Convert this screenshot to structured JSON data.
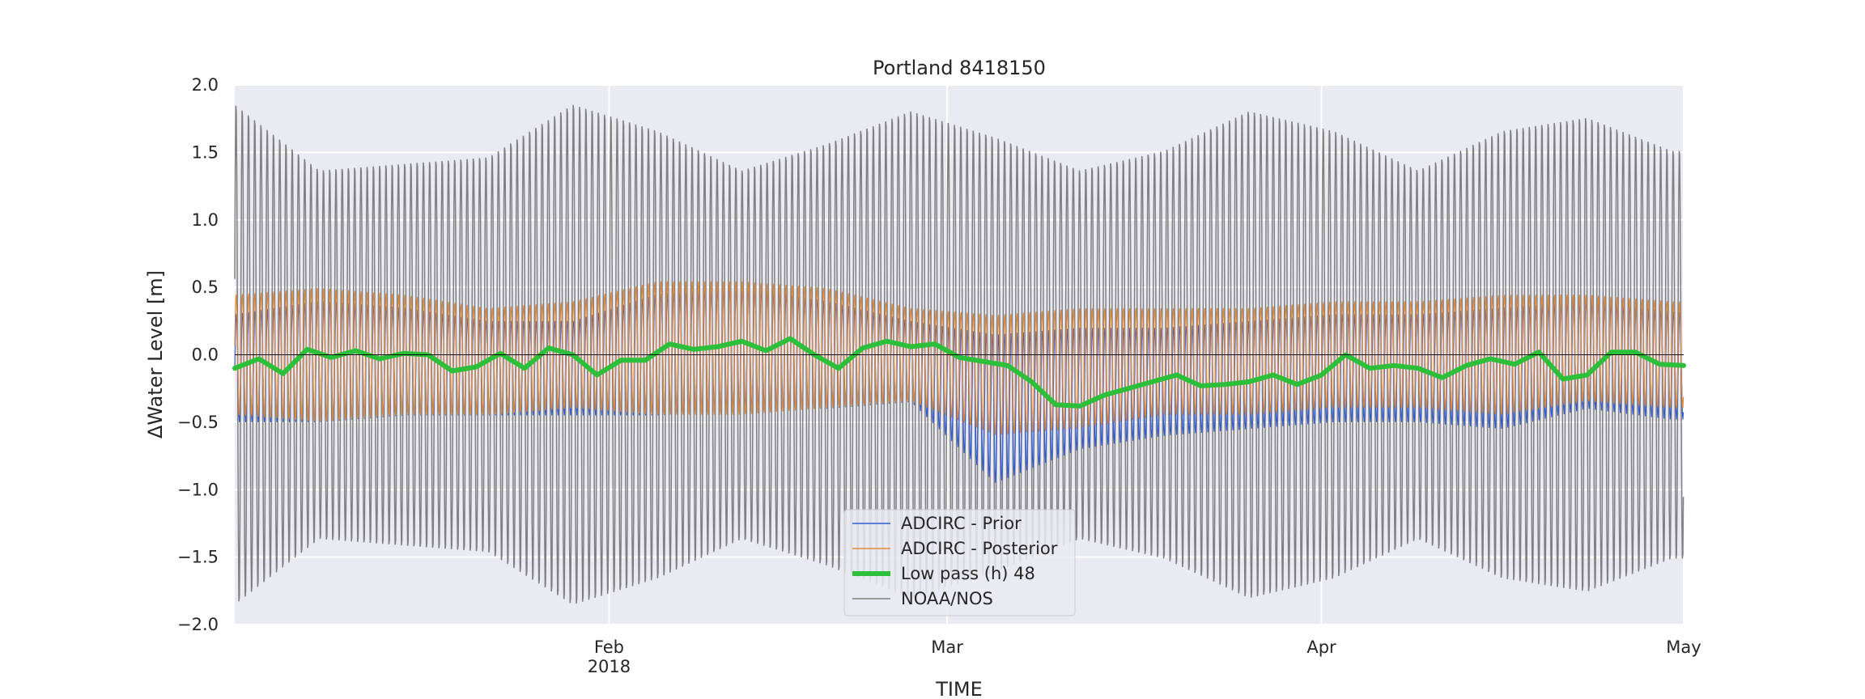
{
  "chart_data": {
    "type": "line",
    "title": "Portland  8418150",
    "xlabel": "TIME",
    "ylabel": "ΔWater Level [m]",
    "ylim": [
      -2.0,
      2.0
    ],
    "yticks": [
      "2.0",
      "1.5",
      "1.0",
      "0.5",
      "0.0",
      "−0.5",
      "−1.0",
      "−1.5",
      "−2.0"
    ],
    "xlim": [
      "2018-01-01",
      "2018-05-01"
    ],
    "xticks": [
      {
        "date": "2018-02-01",
        "label": "Feb",
        "sublabel": "2018"
      },
      {
        "date": "2018-03-01",
        "label": "Mar",
        "sublabel": ""
      },
      {
        "date": "2018-04-01",
        "label": "Apr",
        "sublabel": ""
      },
      {
        "date": "2018-05-01",
        "label": "May",
        "sublabel": ""
      }
    ],
    "grid": true,
    "legend_position": "lower center",
    "series": [
      {
        "name": "ADCIRC - Prior",
        "color": "#2f5bd6",
        "dates": [
          "2018-01-01",
          "2018-01-08",
          "2018-01-15",
          "2018-01-22",
          "2018-01-29",
          "2018-02-05",
          "2018-02-12",
          "2018-02-19",
          "2018-02-26",
          "2018-03-05",
          "2018-03-12",
          "2018-03-19",
          "2018-03-26",
          "2018-04-02",
          "2018-04-09",
          "2018-04-16",
          "2018-04-23",
          "2018-04-30"
        ],
        "mean": [
          -0.1,
          -0.05,
          -0.05,
          -0.1,
          -0.1,
          0.0,
          0.05,
          0.0,
          -0.05,
          -0.4,
          -0.25,
          -0.2,
          -0.15,
          -0.1,
          -0.1,
          -0.1,
          0.0,
          -0.08
        ],
        "amplitude": [
          0.4,
          0.45,
          0.4,
          0.35,
          0.35,
          0.45,
          0.45,
          0.4,
          0.3,
          0.55,
          0.45,
          0.4,
          0.4,
          0.4,
          0.4,
          0.45,
          0.4,
          0.4
        ]
      },
      {
        "name": "ADCIRC - Posterior",
        "color": "#e0893a",
        "dates": [
          "2018-01-01",
          "2018-01-08",
          "2018-01-15",
          "2018-01-22",
          "2018-01-29",
          "2018-02-05",
          "2018-02-12",
          "2018-02-19",
          "2018-02-26",
          "2018-03-05",
          "2018-03-12",
          "2018-03-19",
          "2018-03-26",
          "2018-04-02",
          "2018-04-09",
          "2018-04-16",
          "2018-04-23",
          "2018-04-30"
        ],
        "mean": [
          0.0,
          0.0,
          0.0,
          -0.05,
          0.0,
          0.05,
          0.05,
          0.05,
          0.0,
          -0.15,
          -0.1,
          -0.05,
          -0.05,
          0.0,
          0.0,
          0.0,
          0.05,
          0.0
        ],
        "amplitude": [
          0.45,
          0.5,
          0.45,
          0.4,
          0.4,
          0.5,
          0.5,
          0.45,
          0.35,
          0.45,
          0.45,
          0.4,
          0.4,
          0.4,
          0.4,
          0.45,
          0.4,
          0.4
        ]
      },
      {
        "name": "Low pass (h) 48",
        "color": "#2bbf3a",
        "dates": [
          "2018-01-01",
          "2018-01-03",
          "2018-01-05",
          "2018-01-07",
          "2018-01-09",
          "2018-01-11",
          "2018-01-13",
          "2018-01-15",
          "2018-01-17",
          "2018-01-19",
          "2018-01-21",
          "2018-01-23",
          "2018-01-25",
          "2018-01-27",
          "2018-01-29",
          "2018-01-31",
          "2018-02-02",
          "2018-02-04",
          "2018-02-06",
          "2018-02-08",
          "2018-02-10",
          "2018-02-12",
          "2018-02-14",
          "2018-02-16",
          "2018-02-18",
          "2018-02-20",
          "2018-02-22",
          "2018-02-24",
          "2018-02-26",
          "2018-02-28",
          "2018-03-02",
          "2018-03-04",
          "2018-03-06",
          "2018-03-08",
          "2018-03-10",
          "2018-03-12",
          "2018-03-14",
          "2018-03-16",
          "2018-03-18",
          "2018-03-20",
          "2018-03-22",
          "2018-03-24",
          "2018-03-26",
          "2018-03-28",
          "2018-03-30",
          "2018-04-01",
          "2018-04-03",
          "2018-04-05",
          "2018-04-07",
          "2018-04-09",
          "2018-04-11",
          "2018-04-13",
          "2018-04-15",
          "2018-04-17",
          "2018-04-19",
          "2018-04-21",
          "2018-04-23",
          "2018-04-25",
          "2018-04-27",
          "2018-04-29",
          "2018-05-01"
        ],
        "values": [
          -0.1,
          -0.03,
          -0.14,
          0.04,
          -0.02,
          0.03,
          -0.03,
          0.01,
          0.0,
          -0.12,
          -0.09,
          0.01,
          -0.1,
          0.05,
          0.0,
          -0.15,
          -0.04,
          -0.04,
          0.08,
          0.04,
          0.06,
          0.1,
          0.03,
          0.12,
          0.0,
          -0.1,
          0.05,
          0.1,
          0.06,
          0.08,
          -0.02,
          -0.05,
          -0.08,
          -0.2,
          -0.37,
          -0.38,
          -0.3,
          -0.25,
          -0.2,
          -0.15,
          -0.23,
          -0.22,
          -0.2,
          -0.15,
          -0.22,
          -0.15,
          0.0,
          -0.1,
          -0.08,
          -0.1,
          -0.17,
          -0.08,
          -0.03,
          -0.07,
          0.02,
          -0.18,
          -0.15,
          0.02,
          0.02,
          -0.07,
          -0.08
        ]
      },
      {
        "name": "NOAA/NOS",
        "color": "#808080",
        "dates": [
          "2018-01-01",
          "2018-01-08",
          "2018-01-15",
          "2018-01-22",
          "2018-01-29",
          "2018-02-05",
          "2018-02-12",
          "2018-02-19",
          "2018-02-26",
          "2018-03-05",
          "2018-03-12",
          "2018-03-19",
          "2018-03-26",
          "2018-04-02",
          "2018-04-09",
          "2018-04-16",
          "2018-04-23",
          "2018-04-30"
        ],
        "amplitude": [
          1.9,
          1.4,
          1.45,
          1.5,
          1.9,
          1.7,
          1.4,
          1.6,
          1.85,
          1.65,
          1.4,
          1.55,
          1.85,
          1.7,
          1.4,
          1.7,
          1.8,
          1.55
        ]
      }
    ]
  }
}
